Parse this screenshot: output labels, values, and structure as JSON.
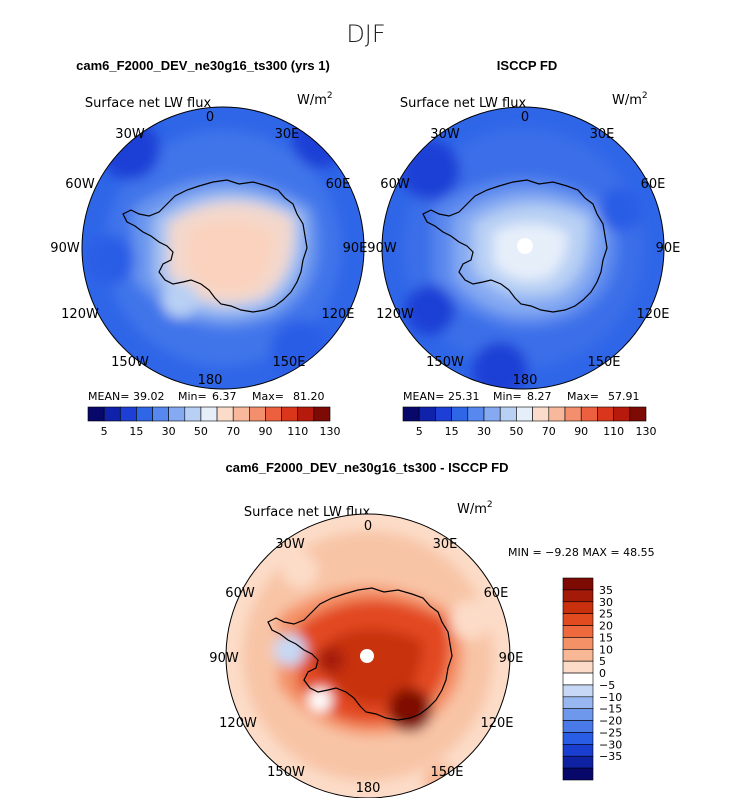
{
  "season": "DJF",
  "panels": [
    {
      "title": "cam6_F2000_DEV_ne30g16_ts300 (yrs 1)",
      "var_label": "Surface net LW flux",
      "units": "W/m",
      "units_sup": "2",
      "stats": {
        "mean_label": "MEAN=",
        "mean": "39.02",
        "min_label": "Min=",
        "min": "6.37",
        "max_label": "Max=",
        "max": "81.20"
      },
      "lon_labels": [
        "0",
        "30E",
        "60E",
        "90E",
        "120E",
        "150E",
        "180",
        "150W",
        "120W",
        "90W",
        "60W",
        "30W"
      ]
    },
    {
      "title": "ISCCP FD",
      "var_label": "Surface net LW flux",
      "units": "W/m",
      "units_sup": "2",
      "stats": {
        "mean_label": "MEAN=",
        "mean": "25.31",
        "min_label": "Min=",
        "min": "8.27",
        "max_label": "Max=",
        "max": "57.91"
      },
      "lon_labels": [
        "0",
        "30E",
        "60E",
        "90E",
        "120E",
        "150E",
        "180",
        "150W",
        "120W",
        "90W",
        "60W",
        "30W"
      ]
    },
    {
      "title": "cam6_F2000_DEV_ne30g16_ts300 - ISCCP FD",
      "var_label": "Surface net LW flux",
      "units": "W/m",
      "units_sup": "2",
      "minmax_text": "MIN =  −9.28 MAX =  48.55",
      "lon_labels": [
        "0",
        "30E",
        "60E",
        "90E",
        "120E",
        "150E",
        "180",
        "150W",
        "120W",
        "90W",
        "60W",
        "30W"
      ]
    }
  ],
  "colorbar_top": {
    "colors": [
      "#08086b",
      "#1122aa",
      "#1d3fd6",
      "#2f66e8",
      "#5688f0",
      "#86aaf2",
      "#b8d0f4",
      "#e6eefa",
      "#fbdccb",
      "#f8b89c",
      "#f38f6c",
      "#ec6040",
      "#d9361c",
      "#b61a0c",
      "#7e0a06"
    ],
    "labels": [
      "5",
      "15",
      "30",
      "50",
      "70",
      "90",
      "110",
      "130"
    ]
  },
  "colorbar_diff": {
    "colors": [
      "#08086b",
      "#0f22a4",
      "#1a3fd0",
      "#2a5de6",
      "#4a7ae8",
      "#6e98ec",
      "#98b7f0",
      "#c6d8f5",
      "#ffffff",
      "#fcdcc8",
      "#f8b896",
      "#f49166",
      "#ee6a3e",
      "#e24a20",
      "#c8300e",
      "#a41a08",
      "#7e0a04"
    ],
    "labels": [
      "35",
      "30",
      "25",
      "20",
      "15",
      "10",
      "5",
      "0",
      "−5",
      "−10",
      "−15",
      "−20",
      "−25",
      "−30",
      "−35"
    ]
  },
  "chart_data": [
    {
      "type": "heatmap",
      "projection": "south polar stereographic",
      "title": "cam6_F2000_DEV_ne30g16_ts300 (yrs 1)",
      "variable": "Surface net LW flux",
      "units": "W/m2",
      "mean": 39.02,
      "min": 6.37,
      "max": 81.2,
      "levels": [
        5,
        10,
        15,
        20,
        30,
        40,
        50,
        60,
        70,
        80,
        90,
        100,
        110,
        120,
        130
      ]
    },
    {
      "type": "heatmap",
      "projection": "south polar stereographic",
      "title": "ISCCP FD",
      "variable": "Surface net LW flux",
      "units": "W/m2",
      "mean": 25.31,
      "min": 8.27,
      "max": 57.91,
      "levels": [
        5,
        10,
        15,
        20,
        30,
        40,
        50,
        60,
        70,
        80,
        90,
        100,
        110,
        120,
        130
      ]
    },
    {
      "type": "heatmap",
      "projection": "south polar stereographic",
      "title": "cam6_F2000_DEV_ne30g16_ts300 - ISCCP FD",
      "variable": "Surface net LW flux",
      "units": "W/m2",
      "min": -9.28,
      "max": 48.55,
      "levels": [
        -35,
        -30,
        -25,
        -20,
        -15,
        -10,
        -5,
        0,
        5,
        10,
        15,
        20,
        25,
        30,
        35
      ]
    }
  ]
}
